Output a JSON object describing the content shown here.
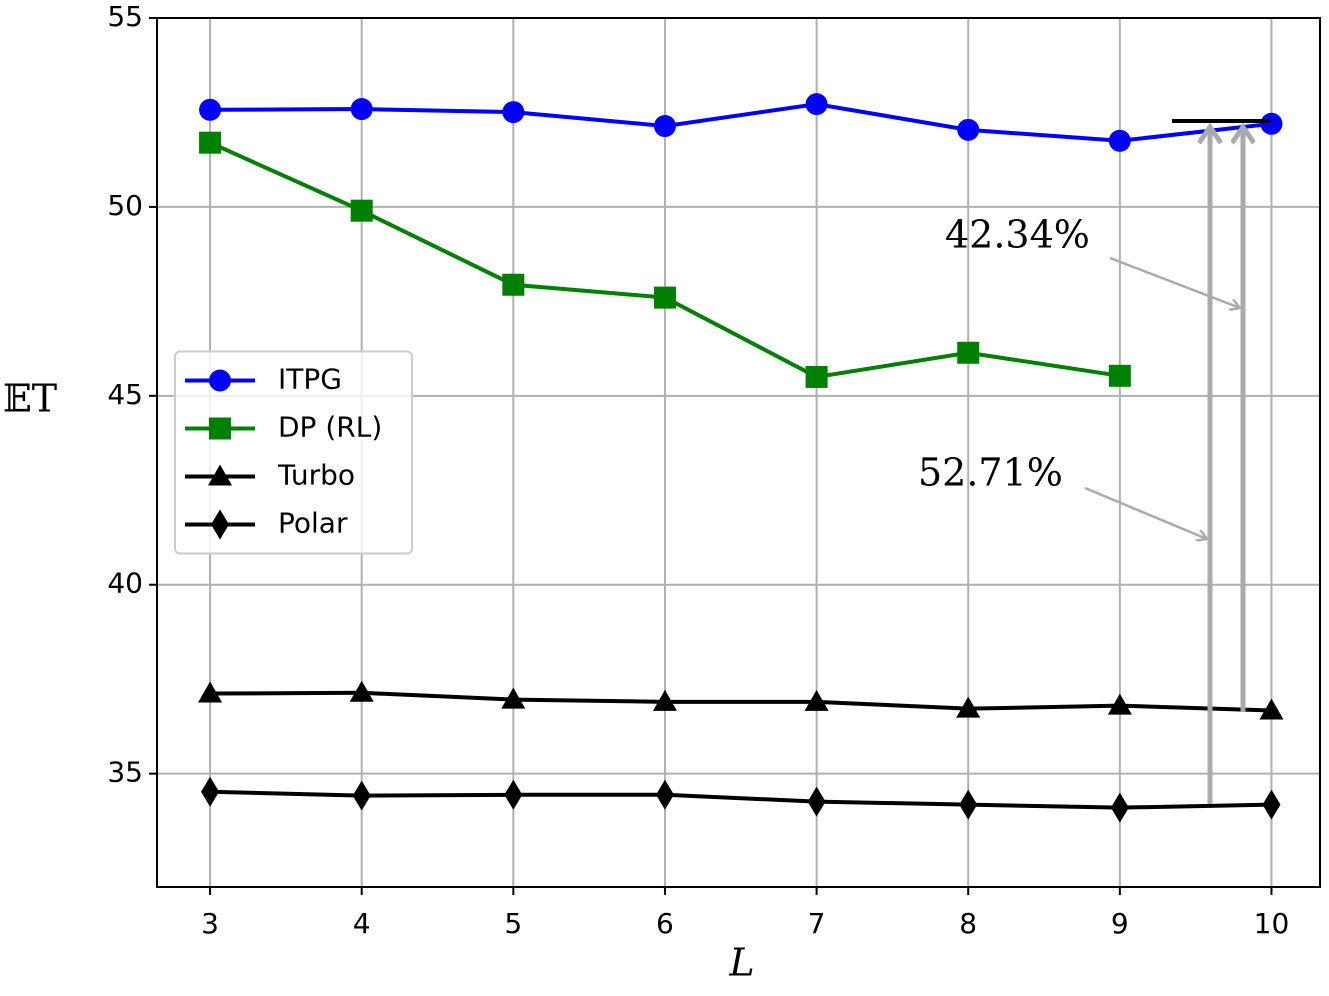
{
  "chart_data": {
    "type": "line",
    "x_label": "L",
    "y_label": "𝔼T",
    "x": [
      3,
      4,
      5,
      6,
      7,
      8,
      9,
      10
    ],
    "series": [
      {
        "name": "ITPG",
        "color": "#0000ff",
        "marker": "circle",
        "values": [
          52.57,
          52.59,
          52.51,
          52.14,
          52.72,
          52.04,
          51.75,
          52.2
        ]
      },
      {
        "name": "DP (RL)",
        "color": "#008000",
        "marker": "square",
        "values": [
          51.7,
          49.9,
          47.94,
          47.6,
          45.5,
          46.14,
          45.53,
          null
        ]
      },
      {
        "name": "Turbo",
        "color": "#000000",
        "marker": "triangle",
        "values": [
          37.12,
          37.14,
          36.96,
          36.9,
          36.9,
          36.72,
          36.8,
          36.67
        ]
      },
      {
        "name": "Polar",
        "color": "#000000",
        "marker": "diamond",
        "values": [
          34.52,
          34.42,
          34.44,
          34.44,
          34.26,
          34.18,
          34.1,
          34.18
        ]
      }
    ],
    "xlim": [
      2.65,
      10.32
    ],
    "ylim": [
      32,
      55
    ],
    "xticks": [
      3,
      4,
      5,
      6,
      7,
      8,
      9,
      10
    ],
    "yticks": [
      35,
      40,
      45,
      50,
      55
    ],
    "grid": true,
    "legend": "center left",
    "annotations": [
      {
        "text": "42.34%"
      },
      {
        "text": "52.71%"
      }
    ]
  }
}
